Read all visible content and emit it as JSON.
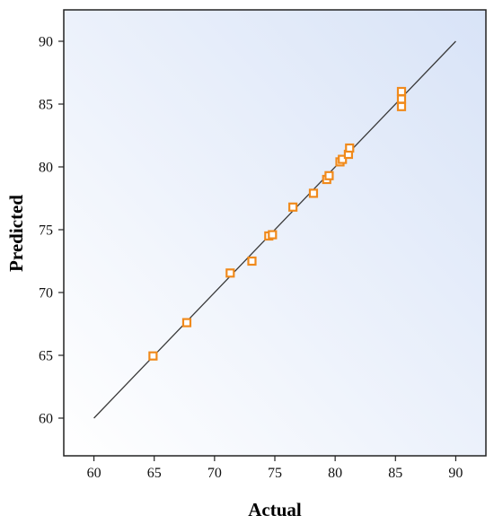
{
  "chart_data": {
    "type": "scatter",
    "xlabel": "Actual",
    "ylabel": "Predicted",
    "xlim": [
      57.5,
      92.5
    ],
    "ylim": [
      57,
      92.5
    ],
    "x_ticks": [
      60,
      65,
      70,
      75,
      80,
      85,
      90
    ],
    "y_ticks": [
      60,
      65,
      70,
      75,
      80,
      85,
      90
    ],
    "grid": false,
    "legend": "none",
    "reference_line": {
      "x": [
        60,
        90
      ],
      "y": [
        60,
        90
      ],
      "color": "#3a3a3a"
    },
    "series": [
      {
        "marker": "square-open",
        "color": "#f08a1c",
        "points": [
          {
            "x": 64.9,
            "y": 64.95
          },
          {
            "x": 67.7,
            "y": 67.6
          },
          {
            "x": 71.3,
            "y": 71.55
          },
          {
            "x": 73.1,
            "y": 72.5
          },
          {
            "x": 74.5,
            "y": 74.5
          },
          {
            "x": 74.8,
            "y": 74.6
          },
          {
            "x": 76.5,
            "y": 76.8
          },
          {
            "x": 78.2,
            "y": 77.9
          },
          {
            "x": 79.3,
            "y": 79.0
          },
          {
            "x": 79.5,
            "y": 79.3
          },
          {
            "x": 80.4,
            "y": 80.4
          },
          {
            "x": 80.6,
            "y": 80.6
          },
          {
            "x": 81.1,
            "y": 81.0
          },
          {
            "x": 81.2,
            "y": 81.5
          },
          {
            "x": 85.5,
            "y": 84.8
          },
          {
            "x": 85.5,
            "y": 85.4
          },
          {
            "x": 85.5,
            "y": 86.0
          }
        ]
      }
    ]
  },
  "colors": {
    "plot_bg_light": "#ffffff",
    "plot_bg_dark": "#d8e3f7",
    "marker": "#f08a1c",
    "line": "#3a3a3a"
  }
}
